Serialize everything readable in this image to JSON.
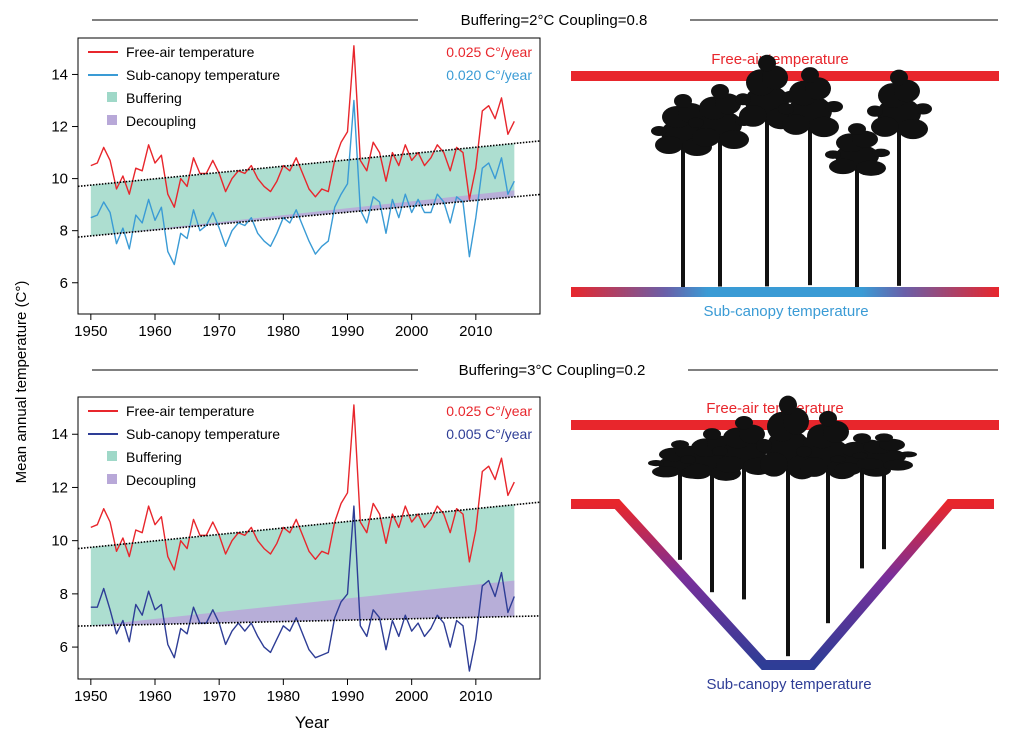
{
  "colors": {
    "free_air": "#e8262c",
    "sub_canopy_top": "#3a9bd5",
    "sub_canopy_bottom": "#2e3d96",
    "buffering": "#9fd8c8",
    "decoupling": "#b8a8d8",
    "trend": "#000000",
    "tree": "#111111"
  },
  "y_axis_label": "Mean annual temperature (C°)",
  "x_axis_label": "Year",
  "chart_data": [
    {
      "type": "line",
      "title": "Buffering=2°C  Coupling=0.8",
      "x": [
        1950,
        1951,
        1952,
        1953,
        1954,
        1955,
        1956,
        1957,
        1958,
        1959,
        1960,
        1961,
        1962,
        1963,
        1964,
        1965,
        1966,
        1967,
        1968,
        1969,
        1970,
        1971,
        1972,
        1973,
        1974,
        1975,
        1976,
        1977,
        1978,
        1979,
        1980,
        1981,
        1982,
        1983,
        1984,
        1985,
        1986,
        1987,
        1988,
        1989,
        1990,
        1991,
        1992,
        1993,
        1994,
        1995,
        1996,
        1997,
        1998,
        1999,
        2000,
        2001,
        2002,
        2003,
        2004,
        2005,
        2006,
        2007,
        2008,
        2009,
        2010,
        2011,
        2012,
        2013,
        2014,
        2015,
        2016
      ],
      "xlim": [
        1948,
        2020
      ],
      "ylim": [
        4.8,
        15.4
      ],
      "xticks": [
        "1950",
        "1960",
        "1970",
        "1980",
        "1990",
        "2000",
        "2010"
      ],
      "yticks": [
        "6",
        "8",
        "10",
        "12",
        "14"
      ],
      "series": [
        {
          "name": "Free-air temperature",
          "rate": "0.025 C°/year",
          "color_key": "free_air",
          "values": [
            10.5,
            10.6,
            11.2,
            10.7,
            9.6,
            10.1,
            9.4,
            10.4,
            10.3,
            11.3,
            10.6,
            10.9,
            9.4,
            8.9,
            10.0,
            9.7,
            10.8,
            10.2,
            10.2,
            10.7,
            10.2,
            9.5,
            10.0,
            10.3,
            10.2,
            10.5,
            10.0,
            9.7,
            9.5,
            9.9,
            10.5,
            10.3,
            10.8,
            10.2,
            9.6,
            9.3,
            9.6,
            9.5,
            10.7,
            11.4,
            11.8,
            15.1,
            10.7,
            10.3,
            11.4,
            11.0,
            9.9,
            11.0,
            10.5,
            11.3,
            10.7,
            11.0,
            10.5,
            10.8,
            11.3,
            11.0,
            10.3,
            11.2,
            11.0,
            9.2,
            10.4,
            12.6,
            12.8,
            12.3,
            13.1,
            11.7,
            12.2
          ]
        },
        {
          "name": "Sub-canopy temperature",
          "rate": "0.020 C°/year",
          "color_key": "sub_canopy_top",
          "values": [
            8.5,
            8.6,
            9.1,
            8.7,
            7.5,
            8.1,
            7.3,
            8.6,
            8.3,
            9.2,
            8.4,
            8.9,
            7.2,
            6.7,
            7.9,
            7.7,
            8.8,
            8.0,
            8.2,
            8.7,
            8.1,
            7.4,
            8.0,
            8.3,
            8.2,
            8.5,
            7.9,
            7.6,
            7.4,
            7.9,
            8.5,
            8.3,
            8.8,
            8.2,
            7.6,
            7.1,
            7.4,
            7.6,
            8.9,
            9.4,
            9.8,
            13.0,
            8.8,
            8.3,
            9.3,
            9.1,
            7.9,
            9.2,
            8.5,
            9.4,
            8.7,
            9.2,
            8.7,
            8.7,
            9.4,
            9.1,
            8.3,
            9.3,
            9.1,
            7.0,
            8.5,
            10.4,
            10.6,
            10.0,
            10.8,
            9.4,
            9.9
          ]
        }
      ],
      "trend_free": [
        9.75,
        11.35
      ],
      "trend_sub": [
        7.8,
        9.3
      ],
      "legend": [
        "Free-air temperature",
        "Sub-canopy temperature",
        "Buffering",
        "Decoupling"
      ]
    },
    {
      "type": "line",
      "title": "Buffering=3°C  Coupling=0.2",
      "x": [
        1950,
        1951,
        1952,
        1953,
        1954,
        1955,
        1956,
        1957,
        1958,
        1959,
        1960,
        1961,
        1962,
        1963,
        1964,
        1965,
        1966,
        1967,
        1968,
        1969,
        1970,
        1971,
        1972,
        1973,
        1974,
        1975,
        1976,
        1977,
        1978,
        1979,
        1980,
        1981,
        1982,
        1983,
        1984,
        1985,
        1986,
        1987,
        1988,
        1989,
        1990,
        1991,
        1992,
        1993,
        1994,
        1995,
        1996,
        1997,
        1998,
        1999,
        2000,
        2001,
        2002,
        2003,
        2004,
        2005,
        2006,
        2007,
        2008,
        2009,
        2010,
        2011,
        2012,
        2013,
        2014,
        2015,
        2016
      ],
      "xlim": [
        1948,
        2020
      ],
      "ylim": [
        4.8,
        15.4
      ],
      "xticks": [
        "1950",
        "1960",
        "1970",
        "1980",
        "1990",
        "2000",
        "2010"
      ],
      "yticks": [
        "6",
        "8",
        "10",
        "12",
        "14"
      ],
      "series": [
        {
          "name": "Free-air temperature",
          "rate": "0.025 C°/year",
          "color_key": "free_air",
          "values": [
            10.5,
            10.6,
            11.2,
            10.7,
            9.6,
            10.1,
            9.4,
            10.4,
            10.3,
            11.3,
            10.6,
            10.9,
            9.4,
            8.9,
            10.0,
            9.7,
            10.8,
            10.2,
            10.2,
            10.7,
            10.2,
            9.5,
            10.0,
            10.3,
            10.2,
            10.5,
            10.0,
            9.7,
            9.5,
            9.9,
            10.5,
            10.3,
            10.8,
            10.2,
            9.6,
            9.3,
            9.6,
            9.5,
            10.7,
            11.4,
            11.8,
            15.1,
            10.7,
            10.3,
            11.4,
            11.0,
            9.9,
            11.0,
            10.5,
            11.3,
            10.7,
            11.0,
            10.5,
            10.8,
            11.3,
            11.0,
            10.3,
            11.2,
            11.0,
            9.2,
            10.4,
            12.6,
            12.8,
            12.3,
            13.1,
            11.7,
            12.2
          ]
        },
        {
          "name": "Sub-canopy temperature",
          "rate": "0.005 C°/year",
          "color_key": "sub_canopy_bottom",
          "values": [
            7.5,
            7.5,
            8.2,
            7.4,
            6.5,
            7.0,
            6.2,
            7.6,
            7.2,
            8.1,
            7.4,
            7.6,
            6.1,
            5.6,
            6.7,
            6.5,
            7.5,
            6.9,
            6.9,
            7.4,
            6.9,
            6.1,
            6.6,
            6.9,
            6.6,
            6.9,
            6.4,
            6.0,
            5.8,
            6.3,
            6.8,
            6.6,
            7.1,
            6.5,
            5.9,
            5.6,
            5.7,
            5.8,
            7.1,
            7.7,
            8.0,
            11.3,
            6.8,
            6.4,
            7.4,
            7.1,
            5.9,
            7.0,
            6.4,
            7.2,
            6.6,
            6.9,
            6.4,
            6.7,
            7.2,
            6.9,
            6.0,
            7.0,
            6.8,
            5.1,
            6.3,
            8.3,
            8.5,
            7.9,
            8.8,
            7.3,
            7.9
          ]
        }
      ],
      "trend_free": [
        9.75,
        11.35
      ],
      "trend_sub": [
        6.8,
        7.15
      ],
      "decouple_top": 8.5,
      "legend": [
        "Free-air temperature",
        "Sub-canopy temperature",
        "Buffering",
        "Decoupling"
      ]
    }
  ],
  "diagrams": [
    {
      "free_air_label": "Free-air temperature",
      "sub_canopy_label": "Sub-canopy temperature"
    },
    {
      "free_air_label": "Free-air temperature",
      "sub_canopy_label": "Sub-canopy temperature"
    }
  ]
}
